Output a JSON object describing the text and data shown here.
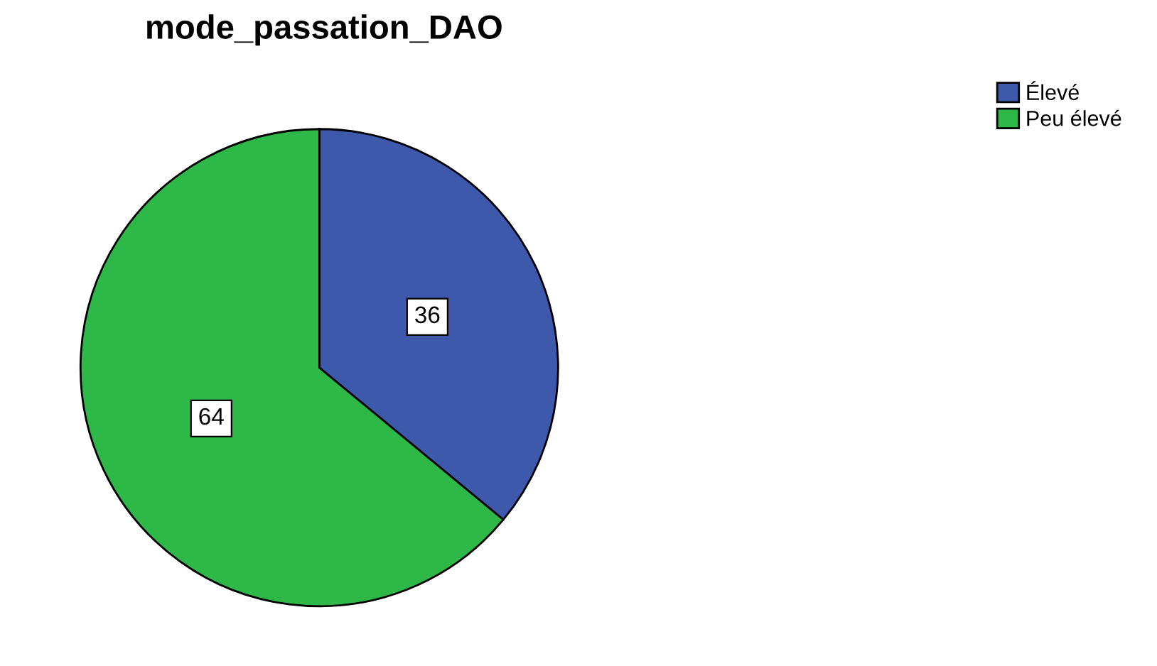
{
  "chart_data": {
    "type": "pie",
    "title": "mode_passation_DAO",
    "categories": [
      "Élevé",
      "Peu élevé"
    ],
    "values": [
      36,
      64
    ],
    "colors": [
      "#3e58ac",
      "#2eb848"
    ],
    "data_labels": true,
    "legend": "top right"
  }
}
